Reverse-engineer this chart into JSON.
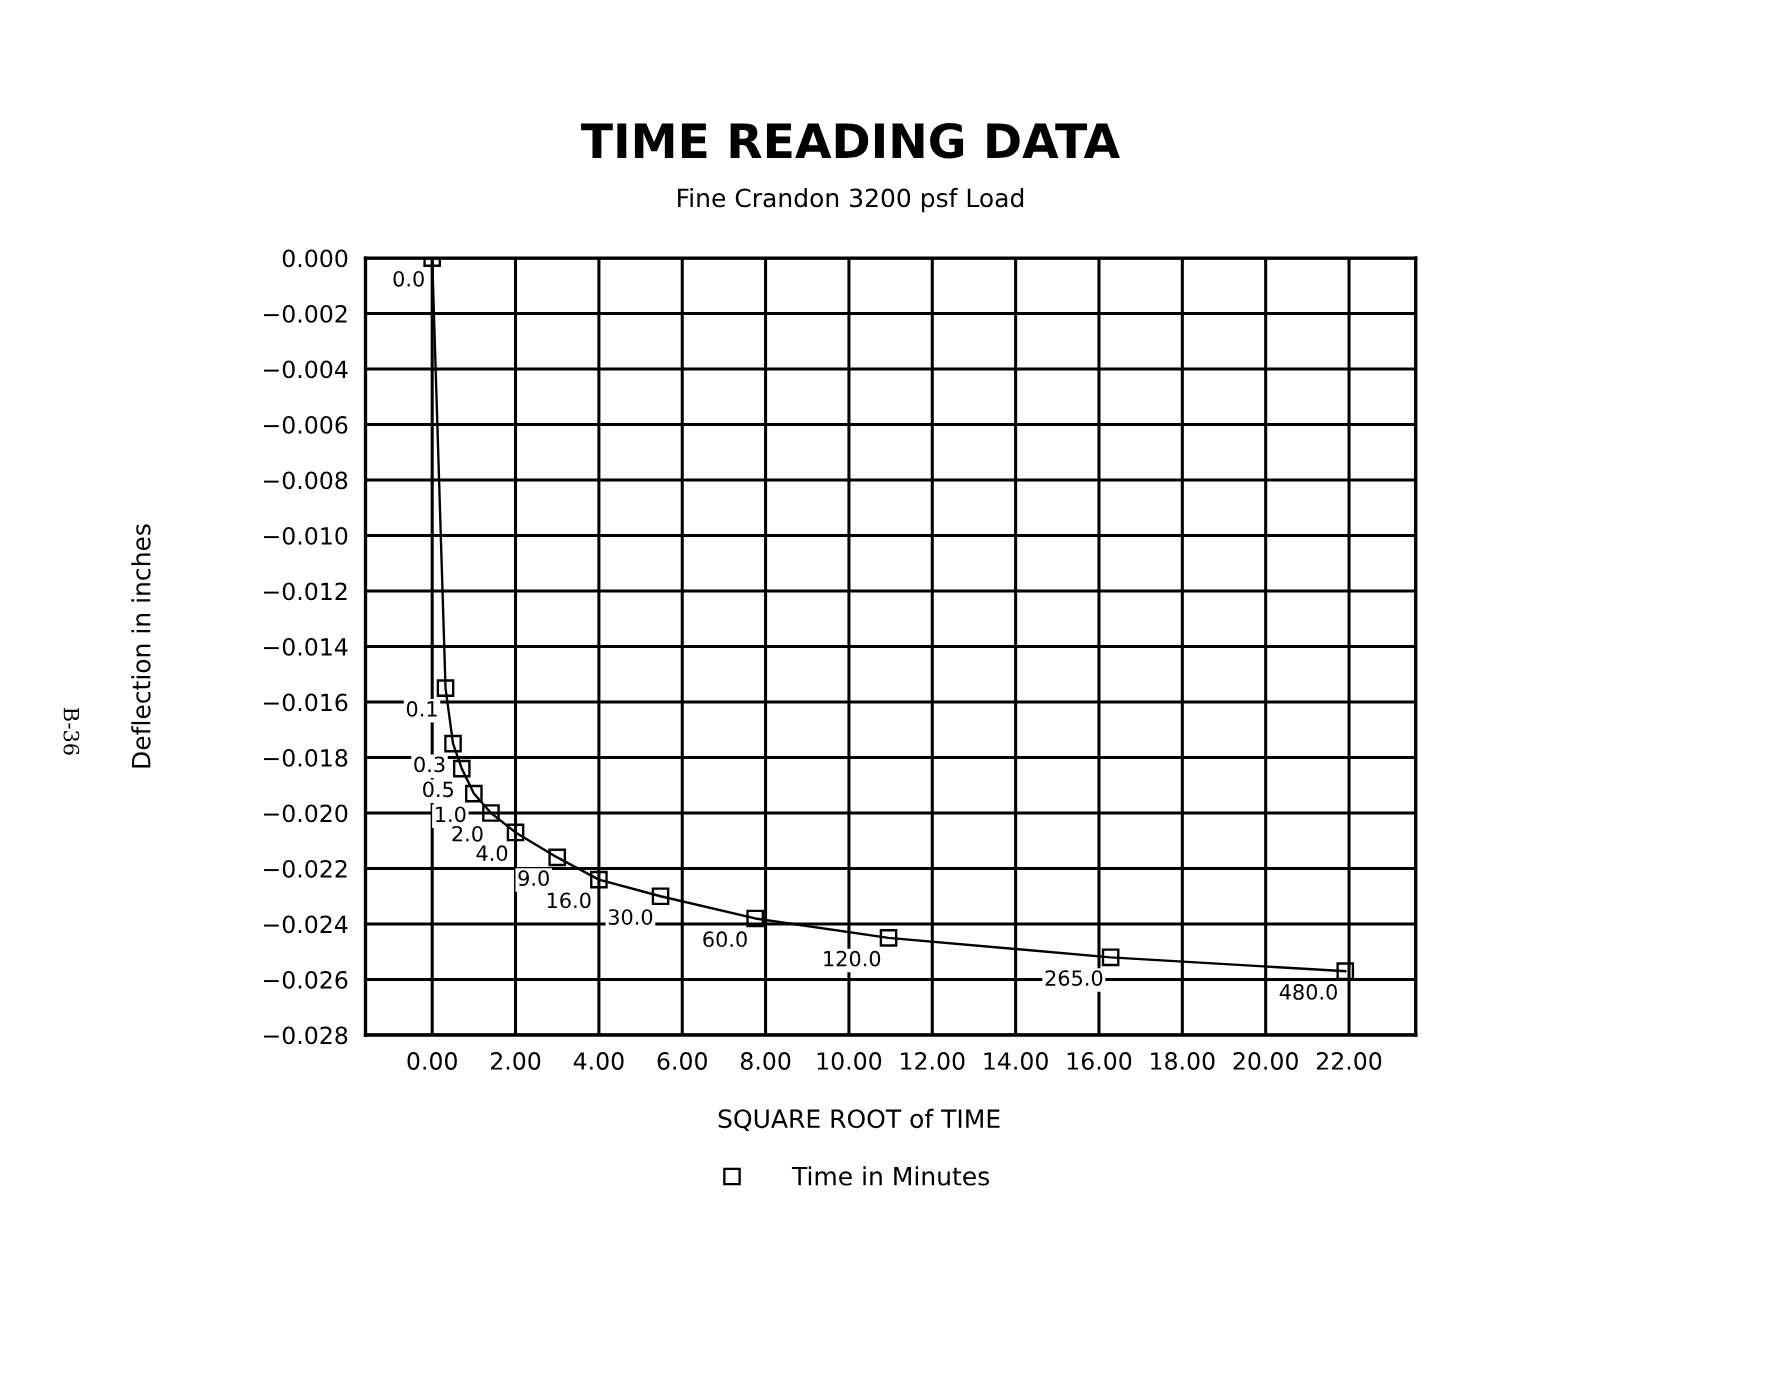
{
  "chart_data": {
    "type": "line",
    "title": "TIME READING DATA",
    "subtitle": "Fine Crandon 3200 psf Load",
    "xlabel": "SQUARE ROOT of TIME",
    "ylabel": "Deflection in inches",
    "x": [
      0,
      0.32,
      0.5,
      0.71,
      1,
      1.41,
      2,
      3,
      4,
      5.48,
      7.75,
      10.95,
      16.28,
      21.91
    ],
    "series": [
      {
        "name": "Time in Minutes",
        "color": "#000000",
        "values": [
          0,
          -0.0155,
          -0.0175,
          -0.0184,
          -0.0193,
          -0.02,
          -0.0207,
          -0.0216,
          -0.0224,
          -0.023,
          -0.0238,
          -0.0245,
          -0.0252,
          -0.0257
        ]
      }
    ],
    "xlim": [
      -1.6,
      23.6
    ],
    "xticks": [
      {
        "value": 0,
        "label": "0.00"
      },
      {
        "value": 2,
        "label": "2.00"
      },
      {
        "value": 4,
        "label": "4.00"
      },
      {
        "value": 6,
        "label": "6.00"
      },
      {
        "value": 8,
        "label": "8.00"
      },
      {
        "value": 10,
        "label": "10.00"
      },
      {
        "value": 12,
        "label": "12.00"
      },
      {
        "value": 14,
        "label": "14.00"
      },
      {
        "value": 16,
        "label": "16.00"
      },
      {
        "value": 18,
        "label": "18.00"
      },
      {
        "value": 20,
        "label": "20.00"
      },
      {
        "value": 22,
        "label": "22.00"
      }
    ],
    "ylim": [
      -0.028,
      0
    ],
    "yticks": [
      {
        "value": 0,
        "label": "0.000"
      },
      {
        "value": -0.002,
        "label": "−0.002"
      },
      {
        "value": -0.004,
        "label": "−0.004"
      },
      {
        "value": -0.006,
        "label": "−0.006"
      },
      {
        "value": -0.008,
        "label": "−0.008"
      },
      {
        "value": -0.01,
        "label": "−0.010"
      },
      {
        "value": -0.012,
        "label": "−0.012"
      },
      {
        "value": -0.014,
        "label": "−0.014"
      },
      {
        "value": -0.016,
        "label": "−0.016"
      },
      {
        "value": -0.018,
        "label": "−0.018"
      },
      {
        "value": -0.02,
        "label": "−0.020"
      },
      {
        "value": -0.022,
        "label": "−0.022"
      },
      {
        "value": -0.024,
        "label": "−0.024"
      },
      {
        "value": -0.026,
        "label": "−0.026"
      },
      {
        "value": -0.028,
        "label": "−0.028"
      }
    ],
    "grid": true,
    "legend": "bottom",
    "marker": "square",
    "line_style": "solid",
    "annotations": [
      {
        "text": "0.0",
        "x": 0,
        "y": 0
      },
      {
        "text": "0.1",
        "x": 0.32,
        "y": -0.0155
      },
      {
        "text": "0.3",
        "x": 0.5,
        "y": -0.0175
      },
      {
        "text": "0.5",
        "x": 0.71,
        "y": -0.0184
      },
      {
        "text": "1.0",
        "x": 1,
        "y": -0.0193
      },
      {
        "text": "2.0",
        "x": 1.41,
        "y": -0.02
      },
      {
        "text": "4.0",
        "x": 2,
        "y": -0.0207
      },
      {
        "text": "9.0",
        "x": 3,
        "y": -0.0216
      },
      {
        "text": "16.0",
        "x": 4,
        "y": -0.0224
      },
      {
        "text": "30.0",
        "x": 5.48,
        "y": -0.023
      },
      {
        "text": "60.0",
        "x": 7.75,
        "y": -0.0238
      },
      {
        "text": "120.0",
        "x": 10.95,
        "y": -0.0245
      },
      {
        "text": "265.0",
        "x": 16.28,
        "y": -0.0252
      },
      {
        "text": "480.0",
        "x": 21.91,
        "y": -0.0257
      },
      "B-36"
    ]
  }
}
